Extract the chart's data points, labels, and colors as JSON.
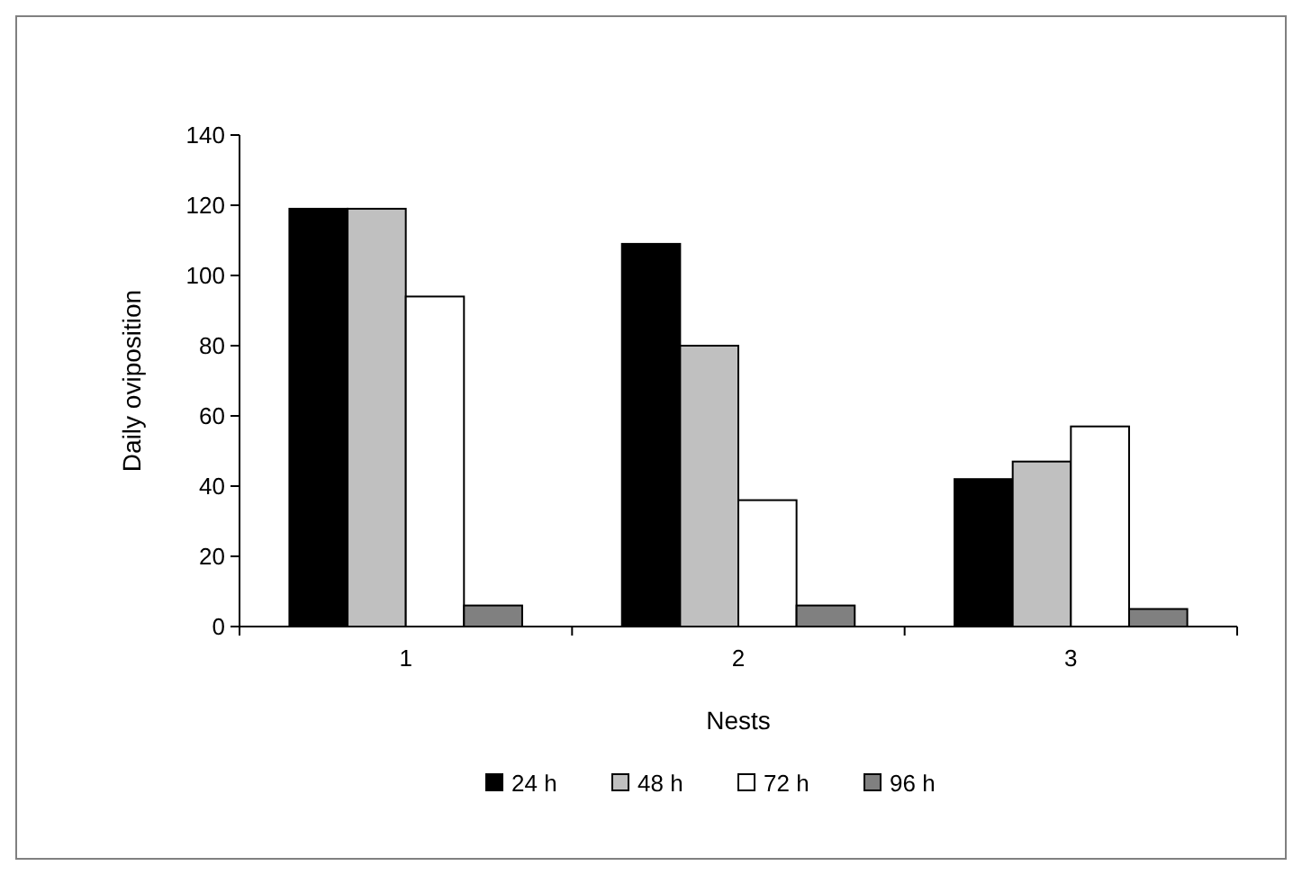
{
  "chart_data": {
    "type": "bar",
    "xlabel": "Nests",
    "ylabel": "Daily oviposition",
    "categories": [
      "1",
      "2",
      "3"
    ],
    "series": [
      {
        "name": "24 h",
        "color": "#000000",
        "values": [
          119,
          109,
          42
        ]
      },
      {
        "name": "48 h",
        "color": "#c0c0c0",
        "values": [
          119,
          80,
          47
        ]
      },
      {
        "name": "72 h",
        "color": "#ffffff",
        "values": [
          94,
          36,
          57
        ]
      },
      {
        "name": "96 h",
        "color": "#808080",
        "values": [
          6,
          6,
          5
        ]
      }
    ],
    "ylim": [
      0,
      140
    ],
    "yticks": [
      0,
      20,
      40,
      60,
      80,
      100,
      120,
      140
    ],
    "grid": false,
    "legend": "bottom"
  }
}
